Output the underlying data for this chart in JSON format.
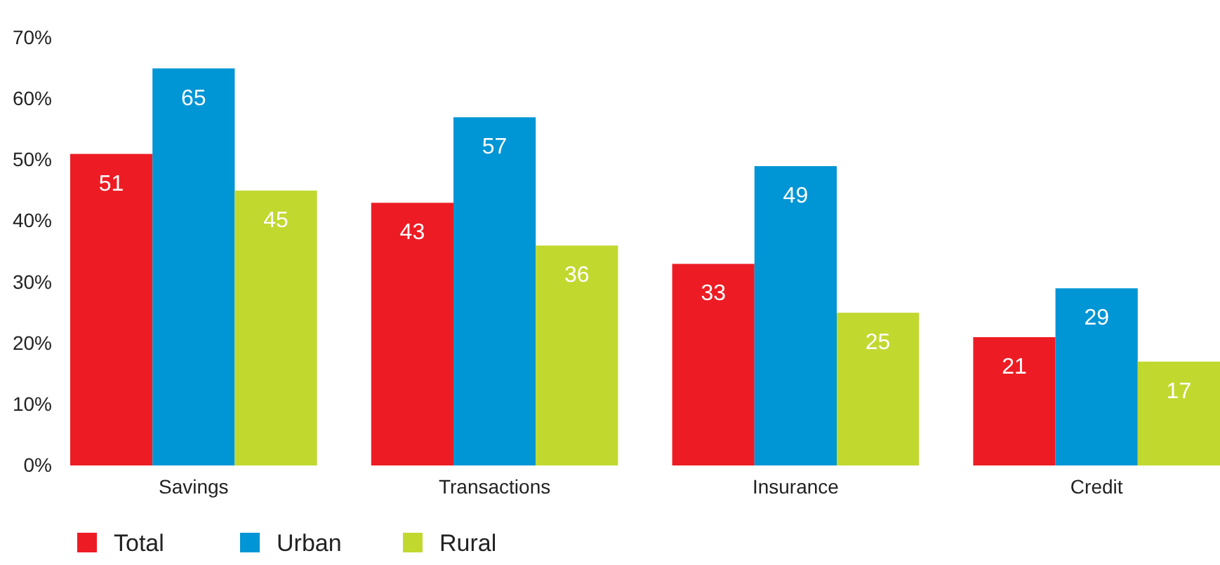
{
  "chart_data": {
    "type": "bar",
    "categories": [
      "Savings",
      "Transactions",
      "Insurance",
      "Credit"
    ],
    "series": [
      {
        "name": "Total",
        "color": "#ed1c24",
        "values": [
          51,
          43,
          33,
          21
        ]
      },
      {
        "name": "Urban",
        "color": "#0095d5",
        "values": [
          65,
          57,
          49,
          29
        ]
      },
      {
        "name": "Rural",
        "color": "#c1d82f",
        "values": [
          45,
          36,
          25,
          17
        ]
      }
    ],
    "ylim": [
      0,
      70
    ],
    "yticks": [
      {
        "value": 0,
        "label": "0%"
      },
      {
        "value": 10,
        "label": "10%"
      },
      {
        "value": 20,
        "label": "20%"
      },
      {
        "value": 30,
        "label": "30%"
      },
      {
        "value": 40,
        "label": "40%"
      },
      {
        "value": 50,
        "label": "50%"
      },
      {
        "value": 60,
        "label": "60%"
      },
      {
        "value": 70,
        "label": "70%"
      }
    ],
    "data_labels": true,
    "legend": "bottom left",
    "grid": false
  }
}
